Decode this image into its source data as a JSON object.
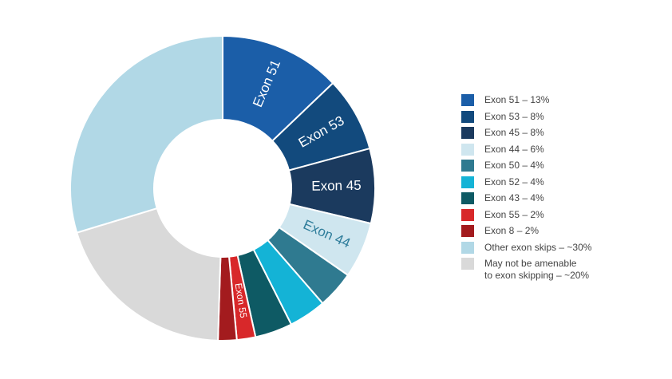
{
  "chart_data": {
    "type": "pie",
    "donut": true,
    "title": "",
    "slices": [
      {
        "name": "Exon 51",
        "legend": "Exon 51 – 13%",
        "value": 13,
        "color": "#1b5ea8",
        "label": "Exon 51",
        "label_color": "#ffffff"
      },
      {
        "name": "Exon 53",
        "legend": "Exon 53 – 8%",
        "value": 8,
        "color": "#124a7d",
        "label": "Exon 53",
        "label_color": "#ffffff"
      },
      {
        "name": "Exon 45",
        "legend": "Exon 45 – 8%",
        "value": 8,
        "color": "#1b3a5e",
        "label": "Exon 45",
        "label_color": "#ffffff"
      },
      {
        "name": "Exon 44",
        "legend": "Exon 44 – 6%",
        "value": 6,
        "color": "#cfe6ef",
        "label": "Exon 44",
        "label_color": "#2f7d9b"
      },
      {
        "name": "Exon 50",
        "legend": "Exon 50 – 4%",
        "value": 4,
        "color": "#2f7a90",
        "label": "",
        "label_color": "#ffffff"
      },
      {
        "name": "Exon 52",
        "legend": "Exon 52 – 4%",
        "value": 4,
        "color": "#14b3d6",
        "label": "",
        "label_color": "#ffffff"
      },
      {
        "name": "Exon 43",
        "legend": "Exon 43 – 4%",
        "value": 4,
        "color": "#0e5a64",
        "label": "",
        "label_color": "#ffffff"
      },
      {
        "name": "Exon 55",
        "legend": "Exon 55 – 2%",
        "value": 2,
        "color": "#d8282a",
        "label": "Exon 55",
        "label_color": "#ffffff"
      },
      {
        "name": "Exon 8",
        "legend": "Exon 8 – 2%",
        "value": 2,
        "color": "#a31b1e",
        "label": "",
        "label_color": "#ffffff"
      },
      {
        "name": "May not be amenable to exon skipping",
        "legend": "May not be amenable\nto exon skipping – ~20%",
        "value": 20,
        "color": "#d9d9d9",
        "label": "",
        "label_color": "#ffffff"
      },
      {
        "name": "Other exon skips",
        "legend": "Other exon skips – ~30%",
        "value": 30,
        "color": "#b1d8e6",
        "label": "",
        "label_color": "#ffffff"
      }
    ],
    "legend_order": [
      0,
      1,
      2,
      3,
      4,
      5,
      6,
      7,
      8,
      10,
      9
    ],
    "legend_position": "right"
  }
}
